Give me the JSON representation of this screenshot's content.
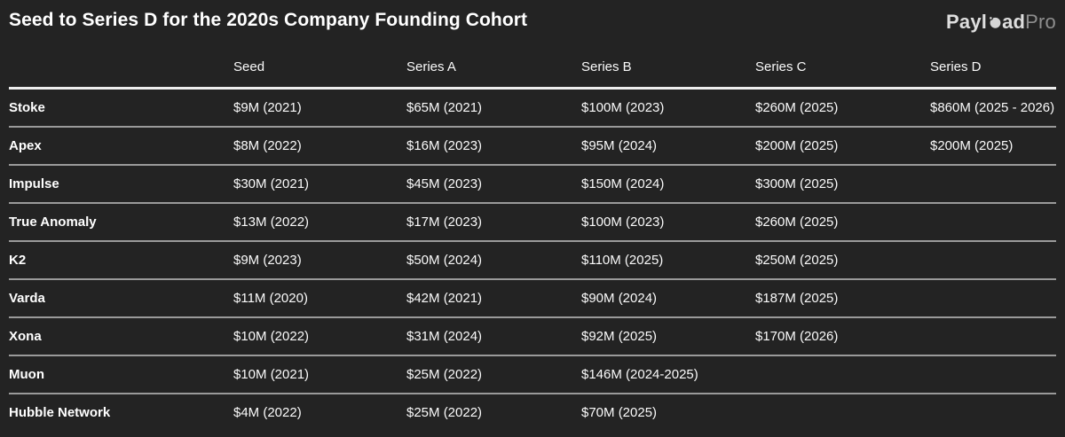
{
  "header": {
    "title": "Seed to Series D for the 2020s Company Founding Cohort",
    "logo": {
      "part1": "Payl",
      "part2": "ad",
      "part3": "Pro",
      "icon": "globe-icon"
    }
  },
  "colors": {
    "background": "#232323",
    "title_text": "#ffffff",
    "value_text": "#fafafa",
    "logo_bold": "#dedede",
    "logo_light": "#8f8f8f",
    "row_divider": "#9a9a9a",
    "header_divider": "#ededed"
  },
  "chart_data": {
    "type": "table",
    "title": "Seed to Series D for the 2020s Company Founding Cohort",
    "columns": [
      "",
      "Seed",
      "Series A",
      "Series B",
      "Series C",
      "Series D"
    ],
    "rows": [
      [
        "Stoke",
        "$9M (2021)",
        "$65M (2021)",
        "$100M (2023)",
        "$260M (2025)",
        "$860M (2025 - 2026)"
      ],
      [
        "Apex",
        "$8M (2022)",
        "$16M (2023)",
        "$95M (2024)",
        "$200M (2025)",
        "$200M (2025)"
      ],
      [
        "Impulse",
        "$30M (2021)",
        "$45M (2023)",
        "$150M (2024)",
        "$300M (2025)",
        ""
      ],
      [
        "True Anomaly",
        "$13M (2022)",
        "$17M (2023)",
        "$100M (2023)",
        "$260M (2025)",
        ""
      ],
      [
        "K2",
        "$9M (2023)",
        "$50M (2024)",
        "$110M (2025)",
        "$250M (2025)",
        ""
      ],
      [
        "Varda",
        "$11M (2020)",
        "$42M (2021)",
        "$90M (2024)",
        "$187M (2025)",
        ""
      ],
      [
        "Xona",
        "$10M (2022)",
        "$31M (2024)",
        "$92M (2025)",
        "$170M (2026)",
        ""
      ],
      [
        "Muon",
        "$10M (2021)",
        "$25M (2022)",
        "$146M (2024-2025)",
        "",
        ""
      ],
      [
        "Hubble Network",
        "$4M (2022)",
        "$25M (2022)",
        "$70M (2025)",
        "",
        ""
      ]
    ]
  }
}
